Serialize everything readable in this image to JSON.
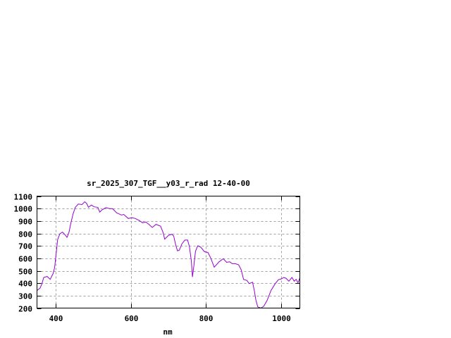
{
  "chart_data": {
    "type": "line",
    "title": "sr_2025_307_TGF__y03_r_rad 12-40-00",
    "xlabel": "nm",
    "ylabel": "",
    "xlim": [
      350,
      1050
    ],
    "ylim": [
      200,
      1100
    ],
    "xticks": [
      400,
      600,
      800,
      1000
    ],
    "yticks": [
      200,
      300,
      400,
      500,
      600,
      700,
      800,
      900,
      1000,
      1100
    ],
    "grid": true,
    "line_color": "#9400d3",
    "series": [
      {
        "x": [
          350,
          358,
          363,
          368,
          377,
          385,
          393,
          397,
          401,
          405,
          411,
          418,
          424,
          430,
          435,
          440,
          446,
          452,
          460,
          470,
          477,
          482,
          487,
          495,
          502,
          512,
          517,
          524,
          534,
          543,
          551,
          562,
          575,
          581,
          585,
          593,
          603,
          612,
          622,
          631,
          640,
          648,
          657,
          667,
          679,
          686,
          690,
          700,
          709,
          714,
          719,
          724,
          729,
          736,
          744,
          751,
          756,
          761,
          764,
          768,
          772,
          778,
          786,
          796,
          805,
          813,
          822,
          835,
          846,
          855,
          863,
          870,
          878,
          887,
          894,
          900,
          909,
          915,
          924,
          929,
          933,
          938,
          946,
          954,
          963,
          973,
          984,
          993,
          1001,
          1007,
          1013,
          1021,
          1029,
          1035,
          1040,
          1045,
          1049,
          1050
        ],
        "y": [
          341,
          360,
          394,
          446,
          454,
          431,
          478,
          525,
          638,
          751,
          797,
          811,
          792,
          769,
          807,
          882,
          957,
          1010,
          1036,
          1032,
          1055,
          1042,
          1010,
          1028,
          1014,
          1010,
          972,
          991,
          1008,
          999,
          999,
          966,
          948,
          953,
          942,
          920,
          927,
          920,
          904,
          886,
          891,
          873,
          848,
          873,
          859,
          807,
          754,
          784,
          794,
          779,
          713,
          660,
          666,
          717,
          747,
          747,
          694,
          581,
          450,
          544,
          656,
          701,
          690,
          653,
          647,
          600,
          529,
          572,
          597,
          568,
          572,
          557,
          557,
          548,
          506,
          431,
          422,
          397,
          408,
          337,
          262,
          209,
          200,
          215,
          262,
          341,
          394,
          428,
          435,
          446,
          440,
          416,
          446,
          416,
          431,
          403,
          435,
          428
        ]
      }
    ]
  }
}
